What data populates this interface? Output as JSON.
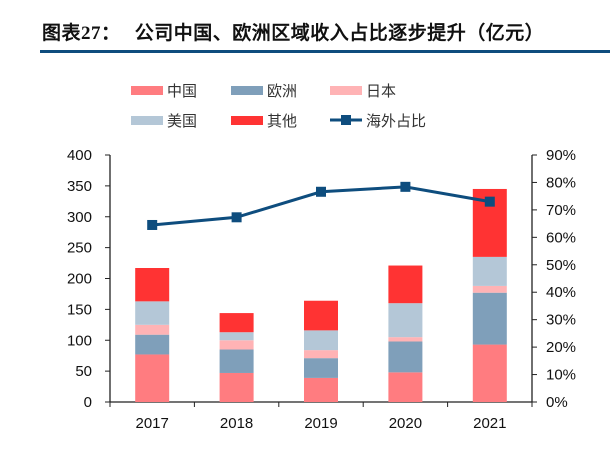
{
  "title": {
    "prefix": "图表27：",
    "text": "公司中国、欧洲区域收入占比逐步提升（亿元）"
  },
  "colors": {
    "china": "#FF7C80",
    "europe": "#7F9FBA",
    "japan": "#FFB3B5",
    "us": "#B4C7D7",
    "other": "#FF3333",
    "line": "#0E4D7E",
    "rule": "#0E4D7E"
  },
  "chart_data": {
    "type": "bar",
    "stacked": true,
    "title": "公司中国、欧洲区域收入占比逐步提升（亿元）",
    "categories": [
      "2017",
      "2018",
      "2019",
      "2020",
      "2021"
    ],
    "series": [
      {
        "name": "中国",
        "key": "china",
        "values": [
          77,
          47,
          39,
          48,
          93
        ]
      },
      {
        "name": "欧洲",
        "key": "europe",
        "values": [
          32,
          38,
          32,
          50,
          84
        ]
      },
      {
        "name": "日本",
        "key": "japan",
        "values": [
          16,
          15,
          13,
          7,
          11
        ]
      },
      {
        "name": "美国",
        "key": "us",
        "values": [
          38,
          13,
          32,
          55,
          47
        ]
      },
      {
        "name": "其他",
        "key": "other",
        "values": [
          54,
          31,
          48,
          61,
          110
        ]
      }
    ],
    "line_series": {
      "name": "海外占比",
      "key": "line",
      "axis": "right",
      "values": [
        0.645,
        0.673,
        0.766,
        0.784,
        0.73
      ]
    },
    "ylim": [
      0,
      400
    ],
    "yticks": [
      "0",
      "50",
      "100",
      "150",
      "200",
      "250",
      "300",
      "350",
      "400"
    ],
    "y2lim": [
      0,
      0.9
    ],
    "y2ticks": [
      "0%",
      "10%",
      "20%",
      "30%",
      "40%",
      "50%",
      "60%",
      "70%",
      "80%",
      "90%"
    ],
    "legend": {
      "placement": "top",
      "order": [
        "中国",
        "欧洲",
        "日本",
        "美国",
        "其他",
        "海外占比"
      ]
    },
    "grid": false
  }
}
